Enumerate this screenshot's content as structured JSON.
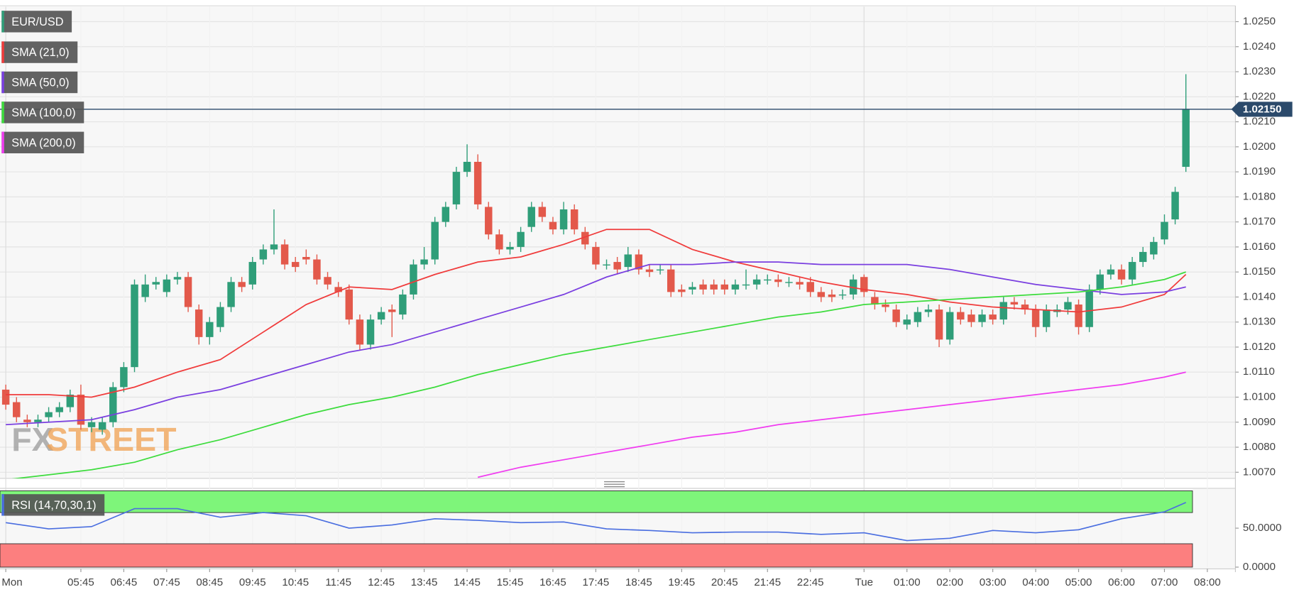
{
  "chart_data": [
    {
      "type": "candlestick",
      "name": "EUR/USD",
      "up_color": "#2f9e79",
      "down_color": "#e3594b",
      "logo": [
        "FX",
        "STREET"
      ],
      "categories": [
        "Mon",
        null,
        null,
        null,
        null,
        null,
        null,
        "05:45",
        null,
        null,
        null,
        "06:45",
        null,
        null,
        null,
        "07:45",
        null,
        null,
        null,
        "08:45",
        null,
        null,
        null,
        "09:45",
        null,
        null,
        null,
        "10:45",
        null,
        null,
        null,
        "11:45",
        null,
        null,
        null,
        "12:45",
        null,
        null,
        null,
        "13:45",
        null,
        null,
        null,
        "14:45",
        null,
        null,
        null,
        "15:45",
        null,
        null,
        null,
        "16:45",
        null,
        null,
        null,
        "17:45",
        null,
        null,
        null,
        "18:45",
        null,
        null,
        null,
        "19:45",
        null,
        null,
        null,
        "20:45",
        null,
        null,
        null,
        "21:45",
        null,
        null,
        null,
        "22:45",
        null,
        null,
        null,
        null,
        "Tue",
        null,
        null,
        null,
        "01:00",
        null,
        null,
        null,
        "02:00",
        null,
        null,
        null,
        "03:00",
        null,
        null,
        null,
        "04:00",
        null,
        null,
        null,
        "05:00",
        null,
        null,
        null,
        "06:00",
        null,
        null,
        null,
        "07:00",
        null,
        null,
        null,
        "08:00"
      ],
      "open": [
        1.0103,
        1.0098,
        1.0091,
        1.009,
        1.0092,
        1.0094,
        1.0096,
        1.0101,
        1.0088,
        1.0087,
        1.009,
        1.0104,
        1.0112,
        1.014,
        1.0145,
        1.0142,
        1.0147,
        1.0148,
        1.0135,
        1.0124,
        1.0128,
        1.0136,
        1.0146,
        1.0145,
        1.0155,
        1.0159,
        1.0161,
        1.0154,
        1.0156,
        1.0155,
        1.0148,
        1.0144,
        1.0143,
        1.0131,
        1.0121,
        1.0131,
        1.0135,
        1.0133,
        1.0141,
        1.0153,
        1.0155,
        1.017,
        1.0177,
        1.019,
        1.0194,
        1.0176,
        1.0165,
        1.0159,
        1.016,
        1.0168,
        1.0176,
        1.017,
        1.0167,
        1.0175,
        1.0166,
        1.016,
        1.0153,
        1.0154,
        1.0152,
        1.0157,
        1.0151,
        1.0151,
        1.0151,
        1.0143,
        1.0143,
        1.0145,
        1.0145,
        1.0145,
        1.0143,
        1.0145,
        1.0145,
        1.0147,
        1.0147,
        1.0146,
        1.0146,
        1.0146,
        1.0142,
        1.0141,
        1.0141,
        1.0141,
        1.0148,
        1.014,
        1.0137,
        1.0135,
        1.0129,
        1.013,
        1.0134,
        1.0135,
        1.0123,
        1.0134,
        1.0133,
        1.013,
        1.0133,
        1.0131,
        1.0138,
        1.0137,
        1.0135,
        1.0128,
        1.0134,
        1.0135,
        1.0137,
        1.0128,
        1.0143,
        1.0149,
        1.0151,
        1.0147,
        1.0154,
        1.0157,
        1.0163,
        1.0171,
        1.0192,
        null,
        null
      ],
      "high": [
        1.0105,
        1.01,
        1.0093,
        1.0093,
        1.0096,
        1.0098,
        1.0103,
        1.0105,
        1.0092,
        1.0092,
        1.0106,
        1.0114,
        1.0147,
        1.0149,
        1.0148,
        1.0149,
        1.015,
        1.015,
        1.0137,
        1.0132,
        1.0138,
        1.0148,
        1.0148,
        1.0156,
        1.0161,
        1.0175,
        1.0163,
        1.0156,
        1.0159,
        1.0157,
        1.015,
        1.0146,
        1.0145,
        1.0133,
        1.0133,
        1.0136,
        1.0137,
        1.0143,
        1.0155,
        1.016,
        1.0172,
        1.0178,
        1.0192,
        1.0201,
        1.0197,
        1.0178,
        1.0167,
        1.0162,
        1.0168,
        1.0178,
        1.0178,
        1.0172,
        1.0178,
        1.0177,
        1.0168,
        1.0162,
        1.0155,
        1.0156,
        1.016,
        1.0159,
        1.0153,
        1.0153,
        1.0153,
        1.0145,
        1.0146,
        1.0147,
        1.0147,
        1.0147,
        1.0147,
        1.0151,
        1.0149,
        1.0149,
        1.0149,
        1.0148,
        1.0148,
        1.0148,
        1.0144,
        1.0143,
        1.0143,
        1.0149,
        1.0149,
        1.0142,
        1.0139,
        1.0137,
        1.0133,
        1.0136,
        1.0137,
        1.0137,
        1.0136,
        1.0136,
        1.0135,
        1.0135,
        1.0135,
        1.014,
        1.014,
        1.0139,
        1.0137,
        1.0137,
        1.0137,
        1.014,
        1.0139,
        1.0145,
        1.0151,
        1.0153,
        1.0153,
        1.0156,
        1.016,
        1.0164,
        1.0173,
        1.0184,
        1.0229,
        null,
        null
      ],
      "low": [
        1.0095,
        1.009,
        1.0088,
        1.0088,
        1.009,
        1.0092,
        1.0094,
        1.0087,
        1.0086,
        1.0085,
        1.0088,
        1.0102,
        1.011,
        1.0138,
        1.0143,
        1.014,
        1.0145,
        1.0134,
        1.0121,
        1.0121,
        1.0126,
        1.0134,
        1.0142,
        1.0143,
        1.0153,
        1.0157,
        1.0151,
        1.015,
        1.0153,
        1.0145,
        1.0143,
        1.014,
        1.0129,
        1.0119,
        1.0119,
        1.0129,
        1.0124,
        1.0131,
        1.0139,
        1.0151,
        1.0153,
        1.0168,
        1.0175,
        1.0188,
        1.0175,
        1.0163,
        1.0157,
        1.0157,
        1.0158,
        1.0166,
        1.017,
        1.0165,
        1.0165,
        1.0165,
        1.0159,
        1.0151,
        1.0151,
        1.0149,
        1.015,
        1.0149,
        1.0148,
        1.0149,
        1.014,
        1.014,
        1.0141,
        1.0141,
        1.0141,
        1.0141,
        1.0141,
        1.0143,
        1.0143,
        1.0145,
        1.0144,
        1.0144,
        1.0143,
        1.014,
        1.0138,
        1.0138,
        1.0139,
        1.0139,
        1.014,
        1.0135,
        1.0134,
        1.0128,
        1.0127,
        1.0128,
        1.0132,
        1.012,
        1.0121,
        1.0129,
        1.0128,
        1.0128,
        1.0129,
        1.0129,
        1.0135,
        1.0133,
        1.0124,
        1.0126,
        1.0132,
        1.0133,
        1.0125,
        1.0126,
        1.0141,
        1.0147,
        1.0145,
        1.0145,
        1.0152,
        1.0155,
        1.0161,
        1.0169,
        1.019,
        null,
        null
      ],
      "close": [
        1.0097,
        1.0092,
        1.009,
        1.0091,
        1.0094,
        1.0096,
        1.0101,
        1.0089,
        1.009,
        1.009,
        1.0104,
        1.0112,
        1.0145,
        1.0145,
        1.0146,
        1.0147,
        1.0148,
        1.0136,
        1.0124,
        1.013,
        1.0136,
        1.0146,
        1.0144,
        1.0154,
        1.0159,
        1.0161,
        1.0153,
        1.0152,
        1.0155,
        1.0147,
        1.0145,
        1.0142,
        1.0131,
        1.0121,
        1.0131,
        1.0134,
        1.0134,
        1.0141,
        1.0153,
        1.0155,
        1.017,
        1.0176,
        1.019,
        1.0194,
        1.0177,
        1.0165,
        1.0159,
        1.016,
        1.0166,
        1.0176,
        1.0172,
        1.0167,
        1.0175,
        1.0167,
        1.0161,
        1.0153,
        1.0153,
        1.0151,
        1.0157,
        1.0151,
        1.015,
        1.0151,
        1.0142,
        1.0142,
        1.0144,
        1.0143,
        1.0143,
        1.0143,
        1.0145,
        1.0145,
        1.0147,
        1.0147,
        1.0146,
        1.0146,
        1.0145,
        1.0142,
        1.014,
        1.014,
        1.0141,
        1.0147,
        1.0142,
        1.0137,
        1.0136,
        1.013,
        1.0131,
        1.0134,
        1.0135,
        1.0123,
        1.0134,
        1.0131,
        1.013,
        1.0133,
        1.0131,
        1.0138,
        1.0137,
        1.0135,
        1.0128,
        1.0135,
        1.0135,
        1.0138,
        1.0128,
        1.0143,
        1.0149,
        1.0151,
        1.0147,
        1.0154,
        1.0158,
        1.0162,
        1.017,
        1.0182,
        1.0215,
        null,
        null
      ],
      "series": [
        {
          "name": "SMA (21,0)",
          "color": "#f03b3b",
          "x": [
            0,
            4,
            8,
            12,
            16,
            20,
            24,
            28,
            32,
            36,
            40,
            44,
            48,
            52,
            56,
            60,
            64,
            68,
            72,
            76,
            80,
            84,
            88,
            92,
            96,
            100,
            104,
            108,
            110
          ],
          "values": [
            1.0101,
            1.0101,
            1.01,
            1.0104,
            1.011,
            1.0115,
            1.0126,
            1.0137,
            1.0144,
            1.0143,
            1.0149,
            1.0154,
            1.0156,
            1.0161,
            1.0167,
            1.0167,
            1.0159,
            1.0154,
            1.015,
            1.0146,
            1.0143,
            1.0141,
            1.0138,
            1.0136,
            1.0135,
            1.0134,
            1.0136,
            1.0141,
            1.0149
          ]
        },
        {
          "name": "SMA (50,0)",
          "color": "#7a3fe0",
          "x": [
            0,
            4,
            8,
            12,
            16,
            20,
            24,
            28,
            32,
            36,
            40,
            44,
            48,
            52,
            56,
            60,
            64,
            68,
            72,
            76,
            80,
            84,
            88,
            92,
            96,
            100,
            104,
            108,
            110
          ],
          "values": [
            1.0089,
            1.009,
            1.0091,
            1.0095,
            1.01,
            1.0103,
            1.0108,
            1.0113,
            1.0118,
            1.0121,
            1.0126,
            1.0131,
            1.0136,
            1.0141,
            1.0148,
            1.0153,
            1.0153,
            1.0154,
            1.0154,
            1.0153,
            1.0153,
            1.0153,
            1.0151,
            1.0148,
            1.0145,
            1.0143,
            1.0141,
            1.0142,
            1.0144
          ]
        },
        {
          "name": "SMA (100,0)",
          "color": "#3ddc3d",
          "x": [
            0,
            4,
            8,
            12,
            16,
            20,
            24,
            28,
            32,
            36,
            40,
            44,
            48,
            52,
            56,
            60,
            64,
            68,
            72,
            76,
            80,
            84,
            88,
            92,
            96,
            100,
            104,
            108,
            110
          ],
          "values": [
            1.0067,
            1.0069,
            1.0071,
            1.0074,
            1.0079,
            1.0083,
            1.0088,
            1.0093,
            1.0097,
            1.01,
            1.0104,
            1.0109,
            1.0113,
            1.0117,
            1.012,
            1.0123,
            1.0126,
            1.0129,
            1.0132,
            1.0134,
            1.0137,
            1.0138,
            1.0139,
            1.014,
            1.0141,
            1.0142,
            1.0144,
            1.0147,
            1.015
          ]
        },
        {
          "name": "SMA (200,0)",
          "color": "#f03cf0",
          "x": [
            44,
            48,
            52,
            56,
            60,
            64,
            68,
            72,
            76,
            80,
            84,
            88,
            92,
            96,
            100,
            104,
            108,
            110
          ],
          "values": [
            1.0068,
            1.0072,
            1.0075,
            1.0078,
            1.0081,
            1.0084,
            1.0086,
            1.0089,
            1.0091,
            1.0093,
            1.0095,
            1.0097,
            1.0099,
            1.0101,
            1.0103,
            1.0105,
            1.0108,
            1.011
          ]
        }
      ],
      "last_price": {
        "value": 1.0215,
        "label": "1.02150"
      },
      "last_price_color": "#2b4a6b",
      "ylim": [
        1.0068,
        1.0256
      ],
      "yticks": [
        {
          "value": 1.007,
          "label": "1.0070"
        },
        {
          "value": 1.008,
          "label": "1.0080"
        },
        {
          "value": 1.009,
          "label": "1.0090"
        },
        {
          "value": 1.01,
          "label": "1.0100"
        },
        {
          "value": 1.011,
          "label": "1.0110"
        },
        {
          "value": 1.012,
          "label": "1.0120"
        },
        {
          "value": 1.013,
          "label": "1.0130"
        },
        {
          "value": 1.014,
          "label": "1.0140"
        },
        {
          "value": 1.015,
          "label": "1.0150"
        },
        {
          "value": 1.016,
          "label": "1.0160"
        },
        {
          "value": 1.017,
          "label": "1.0170"
        },
        {
          "value": 1.018,
          "label": "1.0180"
        },
        {
          "value": 1.019,
          "label": "1.0190"
        },
        {
          "value": 1.02,
          "label": "1.0200"
        },
        {
          "value": 1.021,
          "label": "1.0210"
        },
        {
          "value": 1.022,
          "label": "1.0220"
        },
        {
          "value": 1.023,
          "label": "1.0230"
        },
        {
          "value": 1.024,
          "label": "1.0240"
        },
        {
          "value": 1.025,
          "label": "1.0250"
        }
      ],
      "grid": true
    },
    {
      "type": "line",
      "series": [
        {
          "name": "RSI (14,70,30,1)",
          "color": "#4a6ee0",
          "x": [
            0,
            4,
            8,
            12,
            16,
            20,
            24,
            28,
            32,
            36,
            40,
            44,
            48,
            52,
            56,
            60,
            64,
            68,
            72,
            76,
            80,
            84,
            88,
            92,
            96,
            100,
            104,
            108,
            110
          ],
          "values": [
            57,
            49,
            52,
            75,
            75,
            64,
            70,
            66,
            50,
            54,
            62,
            60,
            57,
            58,
            49,
            47,
            44,
            45,
            45,
            42,
            44,
            34,
            37,
            47,
            44,
            48,
            62,
            71,
            83
          ]
        }
      ],
      "overbought": 70,
      "oversold": 30,
      "overbought_color": "#7ef57a",
      "oversold_color": "#fc7f7f",
      "ylim": [
        0,
        100
      ],
      "yticks": [
        {
          "value": 50,
          "label": "50.0000"
        },
        {
          "value": 0,
          "label": "0.0000"
        }
      ]
    }
  ]
}
